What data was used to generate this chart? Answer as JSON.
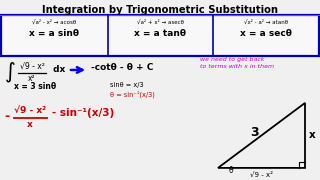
{
  "title": "Integration by Trigonometric Substitution",
  "bg_color": "#f0f0f0",
  "title_color": "#000000",
  "box_color": "#0000bb",
  "col1_small": "√a² - x² → acosθ",
  "col1_big": "x = a sinθ",
  "col2_small": "√a² + x² → asecθ",
  "col2_big": "x = a tanθ",
  "col3_small": "√x² - a² → atanθ",
  "col3_big": "x = a secθ",
  "result": "-cotθ - θ + C",
  "note_color": "#cc00cc",
  "note_line1": "we need to get back",
  "note_line2": "to terms with x in them",
  "sub1": "sinθ = x/3",
  "sub2": "θ = sin⁻¹(x/3)",
  "sub2_color": "#cc0000",
  "xeq": "x = 3 sinθ",
  "final_color": "#cc0000",
  "tri_color": "#000000",
  "arrow_color": "#0000ff"
}
